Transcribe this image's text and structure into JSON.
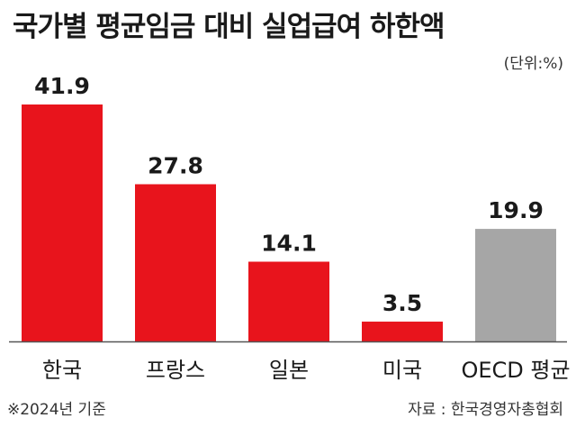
{
  "title": "국가별 평균임금 대비 실업급여 하한액",
  "unit": "(단위:%)",
  "footnote": "※2024년 기준",
  "source": "자료 : 한국경영자총협회",
  "colors": {
    "bar": "#e8141c",
    "highlight": "#a6a6a6",
    "axis": "#555555"
  },
  "chart_data": {
    "type": "bar",
    "categories": [
      "한국",
      "프랑스",
      "일본",
      "미국",
      "OECD 평균"
    ],
    "values": [
      41.9,
      27.8,
      14.1,
      3.5,
      19.9
    ],
    "value_labels": [
      "41.9",
      "27.8",
      "14.1",
      "3.5",
      "19.9"
    ],
    "title": "국가별 평균임금 대비 실업급여 하한액",
    "xlabel": "",
    "ylabel": "",
    "ylim": [
      0,
      41.9
    ],
    "grid": false,
    "bar_colors": [
      "#e8141c",
      "#e8141c",
      "#e8141c",
      "#e8141c",
      "#a6a6a6"
    ]
  }
}
